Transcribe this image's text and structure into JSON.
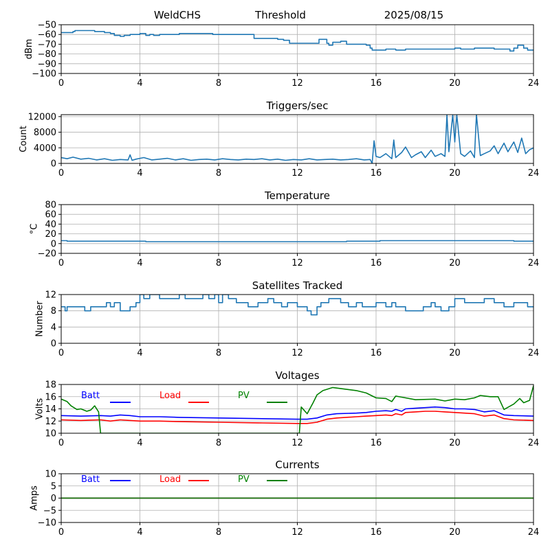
{
  "header": {
    "station": "WeldCHS",
    "threshold_label": "Threshold",
    "date": "2025/08/15"
  },
  "chart_data": [
    {
      "id": "threshold",
      "type": "line",
      "title": "",
      "xlabel": "",
      "ylabel": "dBm",
      "xlim": [
        0,
        24
      ],
      "ylim": [
        -100,
        -50
      ],
      "xticks": [
        0,
        4,
        8,
        12,
        16,
        20,
        24
      ],
      "yticks": [
        -100,
        -90,
        -80,
        -70,
        -60,
        -50
      ],
      "grid": true,
      "series": [
        {
          "color": "#1f77b4",
          "step": true,
          "x": [
            0,
            0.5,
            0.6,
            0.7,
            1.5,
            1.7,
            2.2,
            2.5,
            2.7,
            3.0,
            3.2,
            3.4,
            3.5,
            3.7,
            4.0,
            4.3,
            4.5,
            4.7,
            5.0,
            5.5,
            6.0,
            6.5,
            7.0,
            7.5,
            7.7,
            8.0,
            8.5,
            9.0,
            9.5,
            9.8,
            10.5,
            11.0,
            11.3,
            11.5,
            11.6,
            12.0,
            12.5,
            12.9,
            13.1,
            13.3,
            13.5,
            13.6,
            13.8,
            14.2,
            14.5,
            15.0,
            15.5,
            15.7,
            15.8,
            16.0,
            16.5,
            17.0,
            17.5,
            18.0,
            18.5,
            19.0,
            19.5,
            20.0,
            20.3,
            20.5,
            21.0,
            21.5,
            22.0,
            22.5,
            22.8,
            23.0,
            23.2,
            23.5,
            23.7,
            24.0
          ],
          "y": [
            -58,
            -58,
            -57,
            -56,
            -56,
            -57,
            -58,
            -59,
            -61,
            -62,
            -61,
            -61,
            -60,
            -60,
            -59,
            -61,
            -60,
            -61,
            -60,
            -60,
            -59,
            -59,
            -59,
            -59,
            -60,
            -60,
            -60,
            -60,
            -60,
            -64,
            -64,
            -65,
            -66,
            -66,
            -69,
            -69,
            -69,
            -69,
            -65,
            -65,
            -69,
            -71,
            -68,
            -67,
            -70,
            -70,
            -71,
            -74,
            -76,
            -76,
            -75,
            -76,
            -75,
            -75,
            -75,
            -75,
            -75,
            -74,
            -75,
            -75,
            -74,
            -74,
            -75,
            -75,
            -77,
            -74,
            -71,
            -74,
            -76,
            -76
          ]
        }
      ]
    },
    {
      "id": "triggers",
      "type": "line",
      "title": "Triggers/sec",
      "xlabel": "",
      "ylabel": "Count",
      "xlim": [
        0,
        24
      ],
      "ylim": [
        0,
        12500
      ],
      "xticks": [
        0,
        4,
        8,
        12,
        16,
        20,
        24
      ],
      "yticks": [
        0,
        4000,
        8000,
        12000
      ],
      "grid": true,
      "series": [
        {
          "color": "#1f77b4",
          "x": [
            0,
            0.3,
            0.6,
            1.0,
            1.4,
            1.8,
            2.2,
            2.6,
            3.0,
            3.4,
            3.5,
            3.6,
            3.8,
            4.2,
            4.6,
            5.0,
            5.4,
            5.8,
            6.2,
            6.6,
            7.0,
            7.4,
            7.8,
            8.2,
            8.6,
            9.0,
            9.4,
            9.8,
            10.2,
            10.6,
            11.0,
            11.4,
            11.8,
            12.2,
            12.6,
            13.0,
            13.4,
            13.8,
            14.2,
            14.6,
            15.0,
            15.4,
            15.7,
            15.8,
            15.9,
            16.0,
            16.2,
            16.5,
            16.8,
            16.9,
            17.0,
            17.3,
            17.5,
            17.8,
            18.0,
            18.3,
            18.5,
            18.8,
            19.0,
            19.3,
            19.5,
            19.6,
            19.7,
            19.9,
            20.0,
            20.1,
            20.3,
            20.5,
            20.8,
            21.0,
            21.1,
            21.3,
            21.5,
            21.8,
            22.0,
            22.2,
            22.5,
            22.7,
            23.0,
            23.2,
            23.4,
            23.6,
            23.8,
            24.0
          ],
          "y": [
            1500,
            1200,
            1600,
            1100,
            1300,
            900,
            1200,
            800,
            1000,
            900,
            2200,
            800,
            1100,
            1500,
            900,
            1100,
            1300,
            900,
            1200,
            800,
            1000,
            1100,
            900,
            1200,
            1000,
            900,
            1100,
            1000,
            1200,
            900,
            1100,
            800,
            1000,
            900,
            1200,
            900,
            1000,
            1100,
            900,
            1000,
            1200,
            900,
            1000,
            0,
            5800,
            1800,
            1500,
            2500,
            1200,
            6000,
            1500,
            2800,
            4200,
            1500,
            2200,
            3000,
            1500,
            3400,
            1800,
            2500,
            1800,
            12500,
            3000,
            12500,
            5500,
            12500,
            2500,
            1800,
            3200,
            1500,
            12500,
            2000,
            2500,
            3200,
            4500,
            2500,
            5200,
            3000,
            5500,
            2800,
            6500,
            2500,
            3500,
            4000
          ]
        }
      ]
    },
    {
      "id": "temperature",
      "type": "line",
      "title": "Temperature",
      "xlabel": "",
      "ylabel": "°C",
      "xlim": [
        0,
        24
      ],
      "ylim": [
        -20,
        80
      ],
      "xticks": [
        0,
        4,
        8,
        12,
        16,
        20,
        24
      ],
      "yticks": [
        -20,
        0,
        20,
        40,
        60,
        80
      ],
      "grid": true,
      "series": [
        {
          "color": "#1f77b4",
          "step": true,
          "x": [
            0,
            0.3,
            4.3,
            14.5,
            16.2,
            23.0,
            24.0
          ],
          "y": [
            6,
            5,
            4,
            5,
            6,
            5,
            5
          ]
        }
      ]
    },
    {
      "id": "satellites",
      "type": "line",
      "title": "Satellites Tracked",
      "xlabel": "",
      "ylabel": "Number",
      "xlim": [
        0,
        24
      ],
      "ylim": [
        0,
        12
      ],
      "xticks": [
        0,
        4,
        8,
        12,
        16,
        20,
        24
      ],
      "yticks": [
        0,
        4,
        8,
        12
      ],
      "grid": true,
      "series": [
        {
          "color": "#1f77b4",
          "step": true,
          "x": [
            0,
            0.2,
            0.3,
            0.8,
            1.2,
            1.5,
            2.0,
            2.3,
            2.5,
            2.7,
            3.0,
            3.5,
            3.8,
            4.0,
            4.2,
            4.5,
            5.0,
            5.5,
            6.0,
            6.3,
            6.8,
            7.2,
            7.5,
            7.8,
            8.0,
            8.2,
            8.5,
            8.9,
            9.5,
            10.0,
            10.5,
            10.8,
            11.2,
            11.5,
            12.0,
            12.5,
            12.7,
            13.0,
            13.2,
            13.6,
            14.0,
            14.2,
            14.6,
            15.0,
            15.3,
            15.6,
            16.0,
            16.5,
            16.8,
            17.0,
            17.5,
            18.0,
            18.4,
            18.8,
            19.0,
            19.3,
            19.7,
            20.0,
            20.5,
            21.0,
            21.5,
            22.0,
            22.5,
            23.0,
            23.3,
            23.7,
            24.0
          ],
          "y": [
            9,
            8,
            9,
            9,
            8,
            9,
            9,
            10,
            9,
            10,
            8,
            9,
            10,
            12,
            11,
            12,
            11,
            11,
            12,
            11,
            11,
            12,
            11,
            12,
            10,
            12,
            11,
            10,
            9,
            10,
            11,
            10,
            9,
            10,
            9,
            8,
            7,
            9,
            10,
            11,
            11,
            10,
            9,
            10,
            9,
            9,
            10,
            9,
            10,
            9,
            8,
            8,
            9,
            10,
            9,
            8,
            9,
            11,
            10,
            10,
            11,
            10,
            9,
            10,
            10,
            9,
            9
          ]
        }
      ]
    },
    {
      "id": "voltages",
      "type": "line",
      "title": "Voltages",
      "xlabel": "",
      "ylabel": "Volts",
      "xlim": [
        0,
        24
      ],
      "ylim": [
        10,
        18
      ],
      "xticks": [
        0,
        4,
        8,
        12,
        16,
        20,
        24
      ],
      "yticks": [
        10,
        12,
        14,
        16,
        18
      ],
      "grid": true,
      "legend": "top-left, horizontal",
      "series": [
        {
          "name": "Batt",
          "color": "#0000ff",
          "x": [
            0,
            1,
            2,
            2.5,
            3,
            3.5,
            4,
            5,
            6,
            8,
            10,
            12,
            12.5,
            13,
            13.5,
            14,
            15,
            15.5,
            16,
            16.5,
            16.8,
            17,
            17.3,
            17.5,
            18,
            18.5,
            19,
            19.5,
            20,
            20.5,
            21,
            21.5,
            22,
            22.5,
            23,
            24
          ],
          "y": [
            12.9,
            12.8,
            12.9,
            12.8,
            13.0,
            12.9,
            12.7,
            12.7,
            12.6,
            12.5,
            12.4,
            12.3,
            12.3,
            12.5,
            13.0,
            13.2,
            13.3,
            13.4,
            13.6,
            13.7,
            13.6,
            13.9,
            13.6,
            14.0,
            14.1,
            14.2,
            14.3,
            14.2,
            14.0,
            14.0,
            13.9,
            13.5,
            13.7,
            13.0,
            12.9,
            12.8
          ]
        },
        {
          "name": "Load",
          "color": "#ff0000",
          "x": [
            0,
            1,
            2,
            2.5,
            3,
            3.5,
            4,
            5,
            6,
            8,
            10,
            12,
            12.5,
            13,
            13.5,
            14,
            15,
            15.5,
            16,
            16.5,
            16.8,
            17,
            17.3,
            17.5,
            18,
            18.5,
            19,
            19.5,
            20,
            20.5,
            21,
            21.5,
            22,
            22.5,
            23,
            24
          ],
          "y": [
            12.2,
            12.1,
            12.2,
            12.0,
            12.2,
            12.1,
            12.0,
            12.0,
            11.9,
            11.8,
            11.7,
            11.6,
            11.6,
            11.8,
            12.3,
            12.5,
            12.7,
            12.8,
            12.9,
            13.0,
            12.9,
            13.2,
            13.0,
            13.4,
            13.5,
            13.6,
            13.6,
            13.5,
            13.4,
            13.3,
            13.2,
            12.8,
            13.0,
            12.4,
            12.2,
            12.1
          ]
        },
        {
          "name": "PV",
          "color": "#008000",
          "x": [
            0,
            0.3,
            0.5,
            0.8,
            1.0,
            1.3,
            1.5,
            1.7,
            1.9,
            2.0,
            12.1,
            12.2,
            12.5,
            12.8,
            13.0,
            13.3,
            13.8,
            14.5,
            15.0,
            15.5,
            16.0,
            16.5,
            16.8,
            17.0,
            17.5,
            18.0,
            19.0,
            19.5,
            20.0,
            20.5,
            21.0,
            21.3,
            21.8,
            22.2,
            22.5,
            23.0,
            23.3,
            23.5,
            23.8,
            24.0
          ],
          "y": [
            15.6,
            15.2,
            14.5,
            13.9,
            14.0,
            13.6,
            13.8,
            14.5,
            13.5,
            10.0,
            10.0,
            14.3,
            13.2,
            15.0,
            16.3,
            17.0,
            17.5,
            17.2,
            17.0,
            16.6,
            15.8,
            15.7,
            15.2,
            16.1,
            15.8,
            15.5,
            15.6,
            15.3,
            15.6,
            15.5,
            15.8,
            16.2,
            16.0,
            16.0,
            13.9,
            14.8,
            15.7,
            15.0,
            15.4,
            17.8
          ]
        }
      ]
    },
    {
      "id": "currents",
      "type": "line",
      "title": "Currents",
      "xlabel": "",
      "ylabel": "Amps",
      "xlim": [
        0,
        24
      ],
      "ylim": [
        -10,
        10
      ],
      "xticks": [
        0,
        4,
        8,
        12,
        16,
        20,
        24
      ],
      "yticks": [
        -10,
        -5,
        0,
        5,
        10
      ],
      "grid": true,
      "legend": "top-left, horizontal",
      "series": [
        {
          "name": "Batt",
          "color": "#0000ff",
          "x": [
            0,
            24
          ],
          "y": [
            0,
            0
          ]
        },
        {
          "name": "Load",
          "color": "#ff0000",
          "x": [
            0,
            24
          ],
          "y": [
            0,
            0
          ]
        },
        {
          "name": "PV",
          "color": "#008000",
          "x": [
            0,
            24
          ],
          "y": [
            0,
            0
          ]
        }
      ]
    }
  ]
}
